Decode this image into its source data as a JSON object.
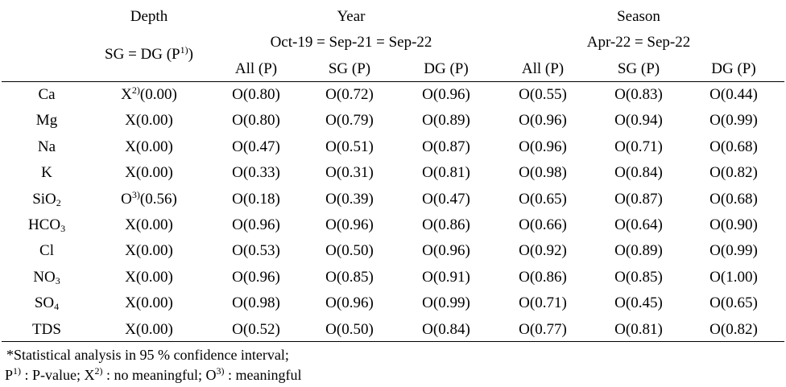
{
  "header": {
    "depth": "Depth",
    "depth_sub": {
      "pre": "SG = DG (P",
      "sup": "1)",
      "post": ")"
    },
    "year": "Year",
    "year_sub": "Oct-19 = Sep-21 = Sep-22",
    "season": "Season",
    "season_sub": "Apr-22 = Sep-22",
    "col_all": "All (P)",
    "col_sg": "SG (P)",
    "col_dg": "DG (P)"
  },
  "rows": [
    {
      "param": {
        "base": "Ca"
      },
      "depth": {
        "pre": "X",
        "sup": "2)",
        "post": "(0.00)"
      },
      "year": [
        "O(0.80)",
        "O(0.72)",
        "O(0.96)"
      ],
      "season": [
        "O(0.55)",
        "O(0.83)",
        "O(0.44)"
      ]
    },
    {
      "param": {
        "base": "Mg"
      },
      "depth": {
        "pre": "X(0.00)"
      },
      "year": [
        "O(0.80)",
        "O(0.79)",
        "O(0.89)"
      ],
      "season": [
        "O(0.96)",
        "O(0.94)",
        "O(0.99)"
      ]
    },
    {
      "param": {
        "base": "Na"
      },
      "depth": {
        "pre": "X(0.00)"
      },
      "year": [
        "O(0.47)",
        "O(0.51)",
        "O(0.87)"
      ],
      "season": [
        "O(0.96)",
        "O(0.71)",
        "O(0.68)"
      ]
    },
    {
      "param": {
        "base": "K"
      },
      "depth": {
        "pre": "X(0.00)"
      },
      "year": [
        "O(0.33)",
        "O(0.31)",
        "O(0.81)"
      ],
      "season": [
        "O(0.98)",
        "O(0.84)",
        "O(0.82)"
      ]
    },
    {
      "param": {
        "base": "SiO",
        "sub": "2"
      },
      "depth": {
        "pre": "O",
        "sup": "3)",
        "post": "(0.56)"
      },
      "year": [
        "O(0.18)",
        "O(0.39)",
        "O(0.47)"
      ],
      "season": [
        "O(0.65)",
        "O(0.87)",
        "O(0.68)"
      ]
    },
    {
      "param": {
        "base": "HCO",
        "sub": "3"
      },
      "depth": {
        "pre": "X(0.00)"
      },
      "year": [
        "O(0.96)",
        "O(0.96)",
        "O(0.86)"
      ],
      "season": [
        "O(0.66)",
        "O(0.64)",
        "O(0.90)"
      ]
    },
    {
      "param": {
        "base": "Cl"
      },
      "depth": {
        "pre": "X(0.00)"
      },
      "year": [
        "O(0.53)",
        "O(0.50)",
        "O(0.96)"
      ],
      "season": [
        "O(0.92)",
        "O(0.89)",
        "O(0.99)"
      ]
    },
    {
      "param": {
        "base": "NO",
        "sub": "3"
      },
      "depth": {
        "pre": "X(0.00)"
      },
      "year": [
        "O(0.96)",
        "O(0.85)",
        "O(0.91)"
      ],
      "season": [
        "O(0.86)",
        "O(0.85)",
        "O(1.00)"
      ]
    },
    {
      "param": {
        "base": "SO",
        "sub": "4"
      },
      "depth": {
        "pre": "X(0.00)"
      },
      "year": [
        "O(0.98)",
        "O(0.96)",
        "O(0.99)"
      ],
      "season": [
        "O(0.71)",
        "O(0.45)",
        "O(0.65)"
      ]
    },
    {
      "param": {
        "base": "TDS"
      },
      "depth": {
        "pre": "X(0.00)"
      },
      "year": [
        "O(0.52)",
        "O(0.50)",
        "O(0.84)"
      ],
      "season": [
        "O(0.77)",
        "O(0.81)",
        "O(0.82)"
      ]
    }
  ],
  "footnotes": {
    "line1": "*Statistical analysis in 95 % confidence interval;",
    "line2": {
      "p": "P",
      "p_sup": "1)",
      "p_text": " : P-value; ",
      "x": "X",
      "x_sup": "2)",
      "x_text": " : no meaningful; ",
      "o": "O",
      "o_sup": "3)",
      "o_text": " : meaningful"
    }
  }
}
